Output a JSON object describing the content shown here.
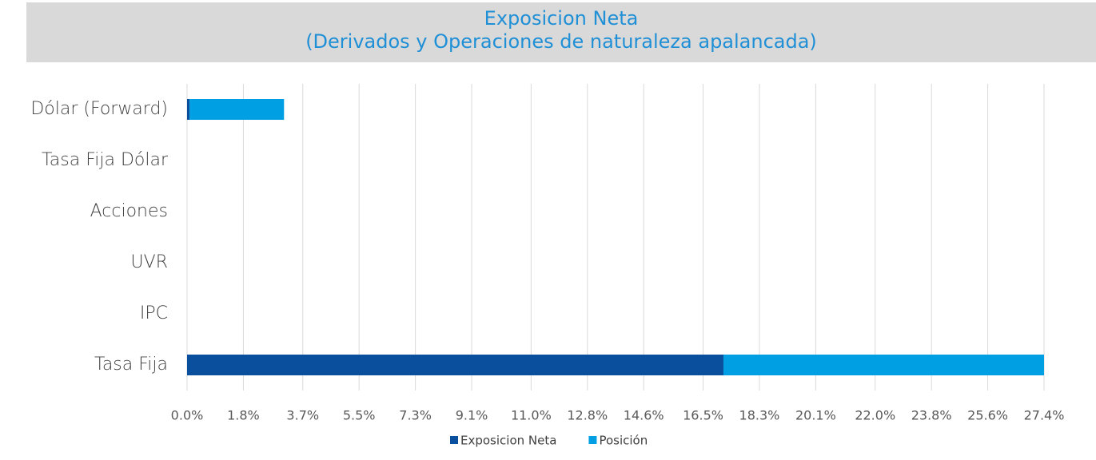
{
  "chart_data": {
    "type": "stacked-barh",
    "title": "Exposicion Neta",
    "subtitle": "(Derivados y Operaciones de naturaleza apalancada)",
    "categories": [
      "Dólar (Forward)",
      "Tasa Fija Dólar",
      "Acciones",
      "UVR",
      "IPC",
      "Tasa Fija"
    ],
    "series": [
      {
        "name": "Exposicion Neta",
        "color": "#0a4f9e",
        "values": [
          0.08,
          0,
          0,
          0,
          0,
          17.15
        ]
      },
      {
        "name": "Posición",
        "color": "#009fe3",
        "values": [
          3.02,
          0,
          0,
          0,
          0,
          10.25
        ]
      }
    ],
    "xlim": [
      0,
      27.4
    ],
    "xticks": [
      {
        "value": 0,
        "label": "0.0%"
      },
      {
        "value": 1.8,
        "label": "1.8%"
      },
      {
        "value": 3.7,
        "label": "3.7%"
      },
      {
        "value": 5.5,
        "label": "5.5%"
      },
      {
        "value": 7.3,
        "label": "7.3%"
      },
      {
        "value": 9.1,
        "label": "9.1%"
      },
      {
        "value": 11.0,
        "label": "11.0%"
      },
      {
        "value": 12.8,
        "label": "12.8%"
      },
      {
        "value": 14.6,
        "label": "14.6%"
      },
      {
        "value": 16.5,
        "label": "16.5%"
      },
      {
        "value": 18.3,
        "label": "18.3%"
      },
      {
        "value": 20.1,
        "label": "20.1%"
      },
      {
        "value": 22.0,
        "label": "22.0%"
      },
      {
        "value": 23.8,
        "label": "23.8%"
      },
      {
        "value": 25.6,
        "label": "25.6%"
      },
      {
        "value": 27.4,
        "label": "27.4%"
      }
    ],
    "grid": true,
    "legend": "bottom"
  }
}
